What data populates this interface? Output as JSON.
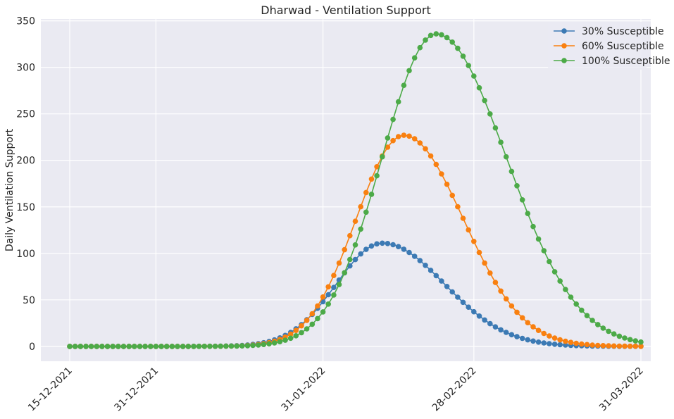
{
  "chart_data": {
    "type": "line",
    "title": "Dharwad - Ventilation Support",
    "xlabel": "",
    "ylabel": "Daily Ventilation Support",
    "x_start": "15-12-2021",
    "x_end": "31-03-2022",
    "x_ticks": [
      {
        "label": "15-12-2021",
        "day": 0
      },
      {
        "label": "31-12-2021",
        "day": 16
      },
      {
        "label": "31-01-2022",
        "day": 47
      },
      {
        "label": "28-02-2022",
        "day": 75
      },
      {
        "label": "31-03-2022",
        "day": 106
      }
    ],
    "y_ticks": [
      0,
      50,
      100,
      150,
      200,
      250,
      300,
      350
    ],
    "ylim": [
      -16,
      352
    ],
    "xlim": [
      -5,
      108
    ],
    "grid": true,
    "legend_position": "top-right",
    "series": [
      {
        "name": "30% Susceptible",
        "color": "#3c7ab4",
        "peak": 111,
        "peak_day": 58,
        "sigma_rise": 8.5,
        "sigma_fall": 11.5
      },
      {
        "name": "60% Susceptible",
        "color": "#f98010",
        "peak": 227,
        "peak_day": 62,
        "sigma_rise": 8.8,
        "sigma_fall": 11.0
      },
      {
        "name": "100% Susceptible",
        "color": "#4caa48",
        "peak": 336,
        "peak_day": 68,
        "sigma_rise": 10.0,
        "sigma_fall": 13.0
      }
    ]
  }
}
